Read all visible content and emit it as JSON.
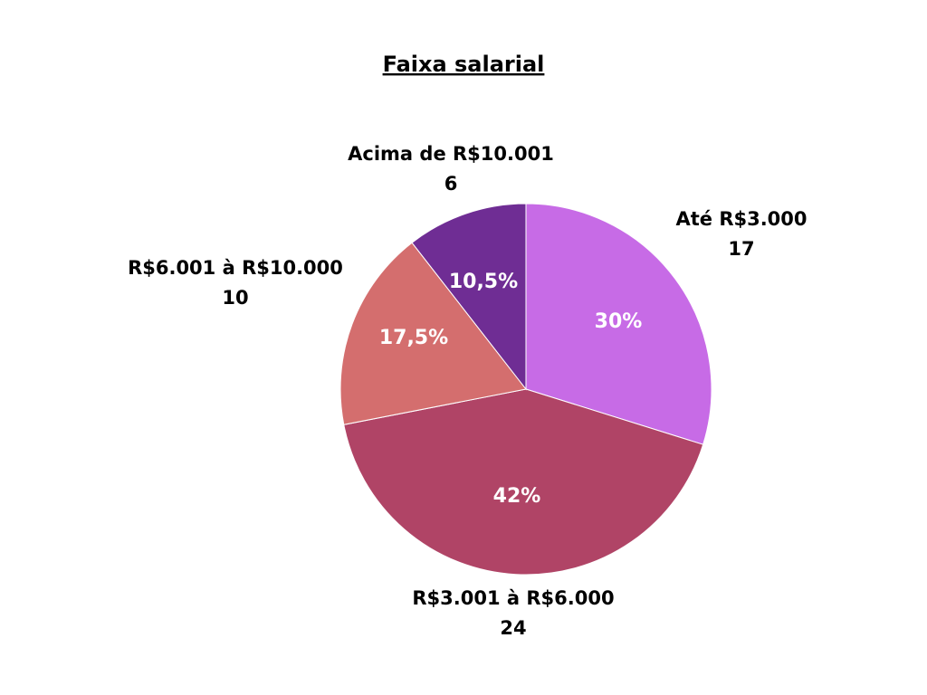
{
  "chart_data": {
    "type": "pie",
    "title": "Faixa salarial",
    "slices": [
      {
        "label": "Até R$3.000",
        "value": 17,
        "percent_label": "30%",
        "color": "#c76be6"
      },
      {
        "label": "R$3.001 à R$6.000",
        "value": 24,
        "percent_label": "42%",
        "color": "#b04466"
      },
      {
        "label": "R$6.001 à R$10.000",
        "value": 10,
        "percent_label": "17,5%",
        "color": "#d46e6e"
      },
      {
        "label": "Acima de R$10.001",
        "value": 6,
        "percent_label": "10,5%",
        "color": "#6f2d94"
      }
    ],
    "legend": "none"
  }
}
